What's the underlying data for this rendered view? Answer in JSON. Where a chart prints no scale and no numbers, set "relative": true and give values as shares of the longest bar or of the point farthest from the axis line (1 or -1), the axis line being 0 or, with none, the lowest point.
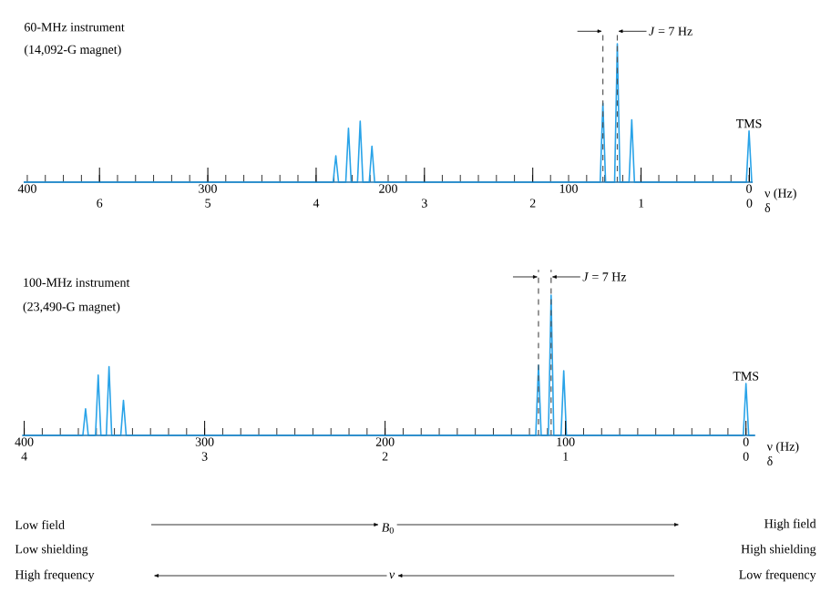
{
  "chart_data": [
    {
      "type": "line",
      "relative": true,
      "xlim": [
        402,
        -2
      ],
      "x2lim": [
        6.7,
        -0.03
      ],
      "xlabel": "ν (Hz)",
      "x2label": "δ",
      "xticks": [
        400,
        {
          "value": 390,
          "label": null
        },
        {
          "value": 380,
          "label": null
        },
        {
          "value": 370,
          "label": null
        },
        {
          "value": 360,
          "label": null
        },
        {
          "value": 350,
          "label": null
        },
        {
          "value": 340,
          "label": null
        },
        {
          "value": 330,
          "label": null
        },
        {
          "value": 320,
          "label": null
        },
        {
          "value": 310,
          "label": null
        },
        300,
        {
          "value": 290,
          "label": null
        },
        {
          "value": 280,
          "label": null
        },
        {
          "value": 270,
          "label": null
        },
        {
          "value": 260,
          "label": null
        },
        {
          "value": 250,
          "label": null
        },
        {
          "value": 240,
          "label": null
        },
        {
          "value": 230,
          "label": null
        },
        {
          "value": 220,
          "label": null
        },
        {
          "value": 210,
          "label": null
        },
        200,
        {
          "value": 190,
          "label": null
        },
        {
          "value": 180,
          "label": null
        },
        {
          "value": 170,
          "label": null
        },
        {
          "value": 160,
          "label": null
        },
        {
          "value": 150,
          "label": null
        },
        {
          "value": 140,
          "label": null
        },
        {
          "value": 130,
          "label": null
        },
        {
          "value": 120,
          "label": null
        },
        {
          "value": 110,
          "label": null
        },
        100,
        {
          "value": 90,
          "label": null
        },
        {
          "value": 80,
          "label": null
        },
        {
          "value": 70,
          "label": null
        },
        {
          "value": 60,
          "label": null
        },
        {
          "value": 50,
          "label": null
        },
        {
          "value": 40,
          "label": null
        },
        {
          "value": 30,
          "label": null
        },
        {
          "value": 20,
          "label": null
        },
        {
          "value": 10,
          "label": null
        },
        0
      ],
      "x2ticks": [
        6,
        5,
        4,
        3,
        2,
        1,
        0
      ],
      "series": [
        {
          "color": "#29a3e8",
          "x": [
            402,
            230.5,
            229,
            227.5,
            223.5,
            222,
            220.5,
            217,
            215.5,
            214,
            210.5,
            209,
            207.5,
            82.5,
            81,
            79.5,
            74.5,
            73,
            71.5,
            66.5,
            65,
            63.5,
            1.5,
            0,
            -1.5,
            -2
          ],
          "values": [
            0,
            0,
            0.19,
            0,
            0,
            0.39,
            0,
            0,
            0.44,
            0,
            0,
            0.26,
            0,
            0,
            0.57,
            0,
            0,
            1,
            0,
            0,
            0.45,
            0,
            0,
            0.37,
            0,
            0
          ]
        }
      ],
      "ref_lines": [
        {
          "axis": "x",
          "value": 81,
          "line_style": "dashed",
          "color": "#555555"
        },
        {
          "axis": "x",
          "value": 73,
          "line_style": "dashed",
          "color": "#555555"
        }
      ],
      "annotations": [
        "60-MHz instrument",
        "(14,092-G magnet)",
        "*J* = 7 Hz",
        {
          "text": "TMS",
          "x": 0,
          "y": 0.37
        }
      ]
    },
    {
      "type": "line",
      "relative": true,
      "xlim": [
        401,
        -5
      ],
      "x2lim": [
        4.01,
        -0.05
      ],
      "xlabel": "ν (Hz)",
      "x2label": "δ",
      "xticks": [
        400,
        {
          "value": 390,
          "label": null
        },
        {
          "value": 380,
          "label": null
        },
        {
          "value": 370,
          "label": null
        },
        {
          "value": 360,
          "label": null
        },
        {
          "value": 350,
          "label": null
        },
        {
          "value": 340,
          "label": null
        },
        {
          "value": 330,
          "label": null
        },
        {
          "value": 320,
          "label": null
        },
        {
          "value": 310,
          "label": null
        },
        300,
        {
          "value": 290,
          "label": null
        },
        {
          "value": 280,
          "label": null
        },
        {
          "value": 270,
          "label": null
        },
        {
          "value": 260,
          "label": null
        },
        {
          "value": 250,
          "label": null
        },
        {
          "value": 240,
          "label": null
        },
        {
          "value": 230,
          "label": null
        },
        {
          "value": 220,
          "label": null
        },
        {
          "value": 210,
          "label": null
        },
        200,
        {
          "value": 190,
          "label": null
        },
        {
          "value": 180,
          "label": null
        },
        {
          "value": 170,
          "label": null
        },
        {
          "value": 160,
          "label": null
        },
        {
          "value": 150,
          "label": null
        },
        {
          "value": 140,
          "label": null
        },
        {
          "value": 130,
          "label": null
        },
        {
          "value": 120,
          "label": null
        },
        {
          "value": 110,
          "label": null
        },
        100,
        {
          "value": 90,
          "label": null
        },
        {
          "value": 80,
          "label": null
        },
        {
          "value": 70,
          "label": null
        },
        {
          "value": 60,
          "label": null
        },
        {
          "value": 50,
          "label": null
        },
        {
          "value": 40,
          "label": null
        },
        {
          "value": 30,
          "label": null
        },
        {
          "value": 20,
          "label": null
        },
        {
          "value": 10,
          "label": null
        },
        0
      ],
      "x2ticks": [
        4,
        3,
        2,
        1,
        0
      ],
      "series": [
        {
          "color": "#29a3e8",
          "x": [
            401,
            367.5,
            366,
            364.5,
            360.5,
            359,
            357.5,
            354.5,
            353,
            351.5,
            346.5,
            345,
            343.5,
            116.5,
            115,
            113.5,
            109.5,
            108,
            106.5,
            102.5,
            101,
            99.5,
            1.5,
            0,
            -1.5,
            -5
          ],
          "values": [
            0,
            0,
            0.19,
            0,
            0,
            0.43,
            0,
            0,
            0.49,
            0,
            0,
            0.25,
            0,
            0,
            0.5,
            0,
            0,
            1,
            0,
            0,
            0.46,
            0,
            0,
            0.37,
            0,
            0
          ]
        }
      ],
      "ref_lines": [
        {
          "axis": "x",
          "value": 115,
          "line_style": "dashed",
          "color": "#555555"
        },
        {
          "axis": "x",
          "value": 108,
          "line_style": "dashed",
          "color": "#555555"
        }
      ],
      "annotations": [
        "100-MHz instrument",
        "(23,490-G magnet)",
        "*J* = 7 Hz",
        {
          "text": "TMS",
          "x": 0,
          "y": 0.37
        },
        "Low field",
        "High field",
        "Low shielding",
        "High shielding",
        "High frequency",
        "Low frequency",
        "*B*$_{0}$",
        "*ν*"
      ]
    }
  ]
}
